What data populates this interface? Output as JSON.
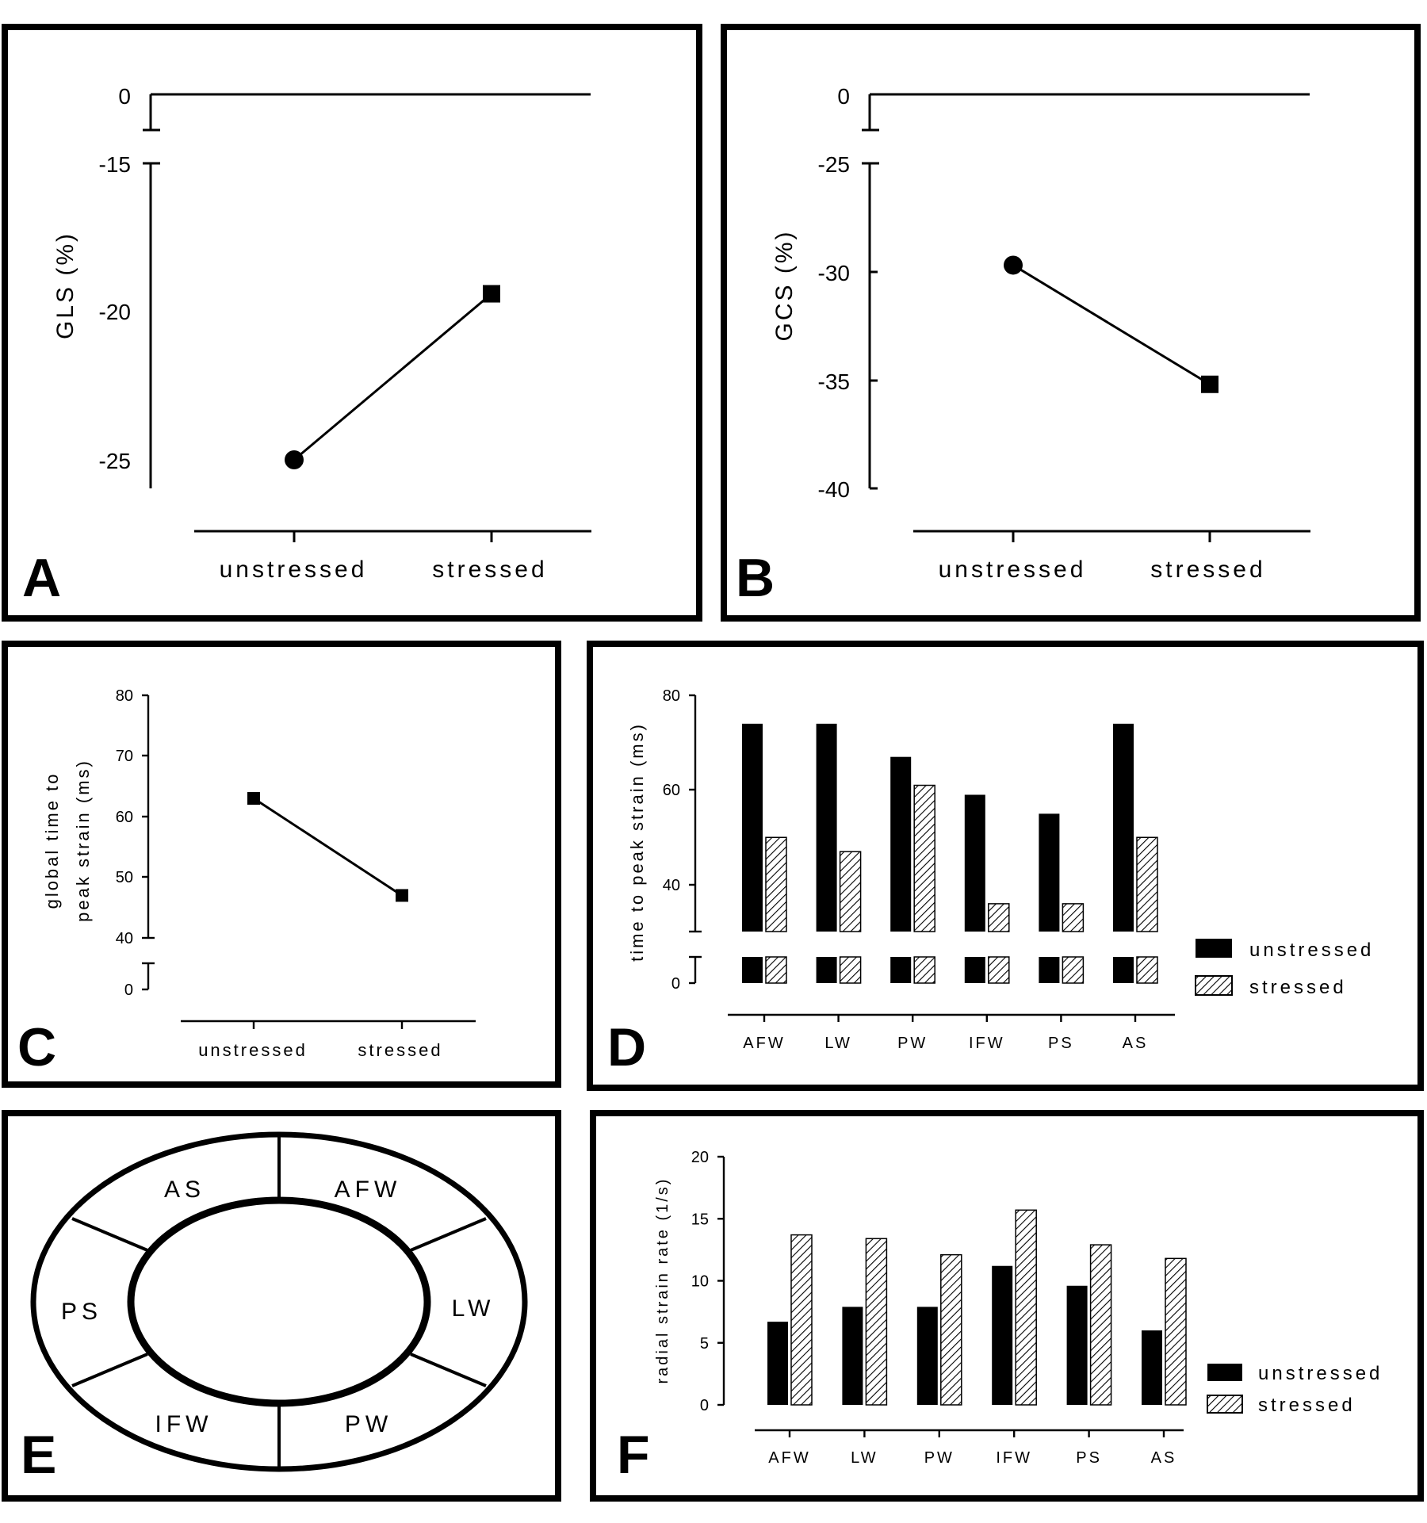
{
  "colors": {
    "unstressed": "#000000",
    "stressed_hatch": "#000000",
    "frame": "#000000"
  },
  "panels": {
    "A": {
      "letter": "A"
    },
    "B": {
      "letter": "B"
    },
    "C": {
      "letter": "C"
    },
    "D": {
      "letter": "D"
    },
    "E": {
      "letter": "E"
    },
    "F": {
      "letter": "F"
    }
  },
  "legend": {
    "unstressed": "unstressed",
    "stressed": "stressed"
  },
  "chart_data": [
    {
      "id": "A",
      "type": "line",
      "categories": [
        "unstressed",
        "stressed"
      ],
      "values": [
        -25,
        -19.4
      ],
      "markers": [
        "circle",
        "square"
      ],
      "ylabel": "GLS (%)",
      "yticks": [
        0,
        -15,
        -20,
        -25
      ],
      "ytick_labels": [
        "0",
        "-15",
        "-20",
        "-25"
      ],
      "ylim": [
        -26,
        -15
      ],
      "axis_break": true
    },
    {
      "id": "B",
      "type": "line",
      "categories": [
        "unstressed",
        "stressed"
      ],
      "values": [
        -29.7,
        -35.2
      ],
      "markers": [
        "circle",
        "square"
      ],
      "ylabel": "GCS (%)",
      "yticks": [
        0,
        -25,
        -30,
        -35,
        -40
      ],
      "ytick_labels": [
        "0",
        "-25",
        "-30",
        "-35",
        "-40"
      ],
      "ylim": [
        -40,
        -25
      ],
      "axis_break": true
    },
    {
      "id": "C",
      "type": "line",
      "categories": [
        "unstressed",
        "stressed"
      ],
      "values": [
        63,
        47
      ],
      "markers": [
        "square",
        "square"
      ],
      "ylabel_lines": [
        "global time to",
        "peak strain  (ms)"
      ],
      "yticks": [
        80,
        70,
        60,
        50,
        40,
        0
      ],
      "ytick_labels": [
        "80",
        "70",
        "60",
        "50",
        "40",
        "0"
      ],
      "ylim": [
        40,
        80
      ],
      "axis_break": true
    },
    {
      "id": "D",
      "type": "bar",
      "categories": [
        "AFW",
        "LW",
        "PW",
        "IFW",
        "PS",
        "AS"
      ],
      "series": [
        {
          "name": "unstressed",
          "values": [
            74,
            74,
            67,
            59,
            55,
            74
          ]
        },
        {
          "name": "stressed",
          "values": [
            50,
            47,
            61,
            36,
            36,
            50
          ]
        }
      ],
      "ylabel": "time to peak strain (ms)",
      "yticks": [
        80,
        60,
        40,
        0
      ],
      "ytick_labels": [
        "80",
        "60",
        "40",
        "0"
      ],
      "ylim": [
        30,
        80
      ],
      "axis_break": true,
      "legend": "right"
    },
    {
      "id": "E",
      "type": "diagram",
      "segments": [
        "AS",
        "AFW",
        "LW",
        "PW",
        "IFW",
        "PS"
      ]
    },
    {
      "id": "F",
      "type": "bar",
      "categories": [
        "AFW",
        "LW",
        "PW",
        "IFW",
        "PS",
        "AS"
      ],
      "series": [
        {
          "name": "unstressed",
          "values": [
            6.7,
            7.9,
            7.9,
            11.2,
            9.6,
            6.0
          ]
        },
        {
          "name": "stressed",
          "values": [
            13.7,
            13.4,
            12.1,
            15.7,
            12.9,
            11.8
          ]
        }
      ],
      "ylabel": "radial strain rate (1/s)",
      "yticks": [
        20,
        15,
        10,
        5,
        0
      ],
      "ytick_labels": [
        "20",
        "15",
        "10",
        "5",
        "0"
      ],
      "ylim": [
        0,
        20
      ],
      "legend": "right"
    }
  ]
}
